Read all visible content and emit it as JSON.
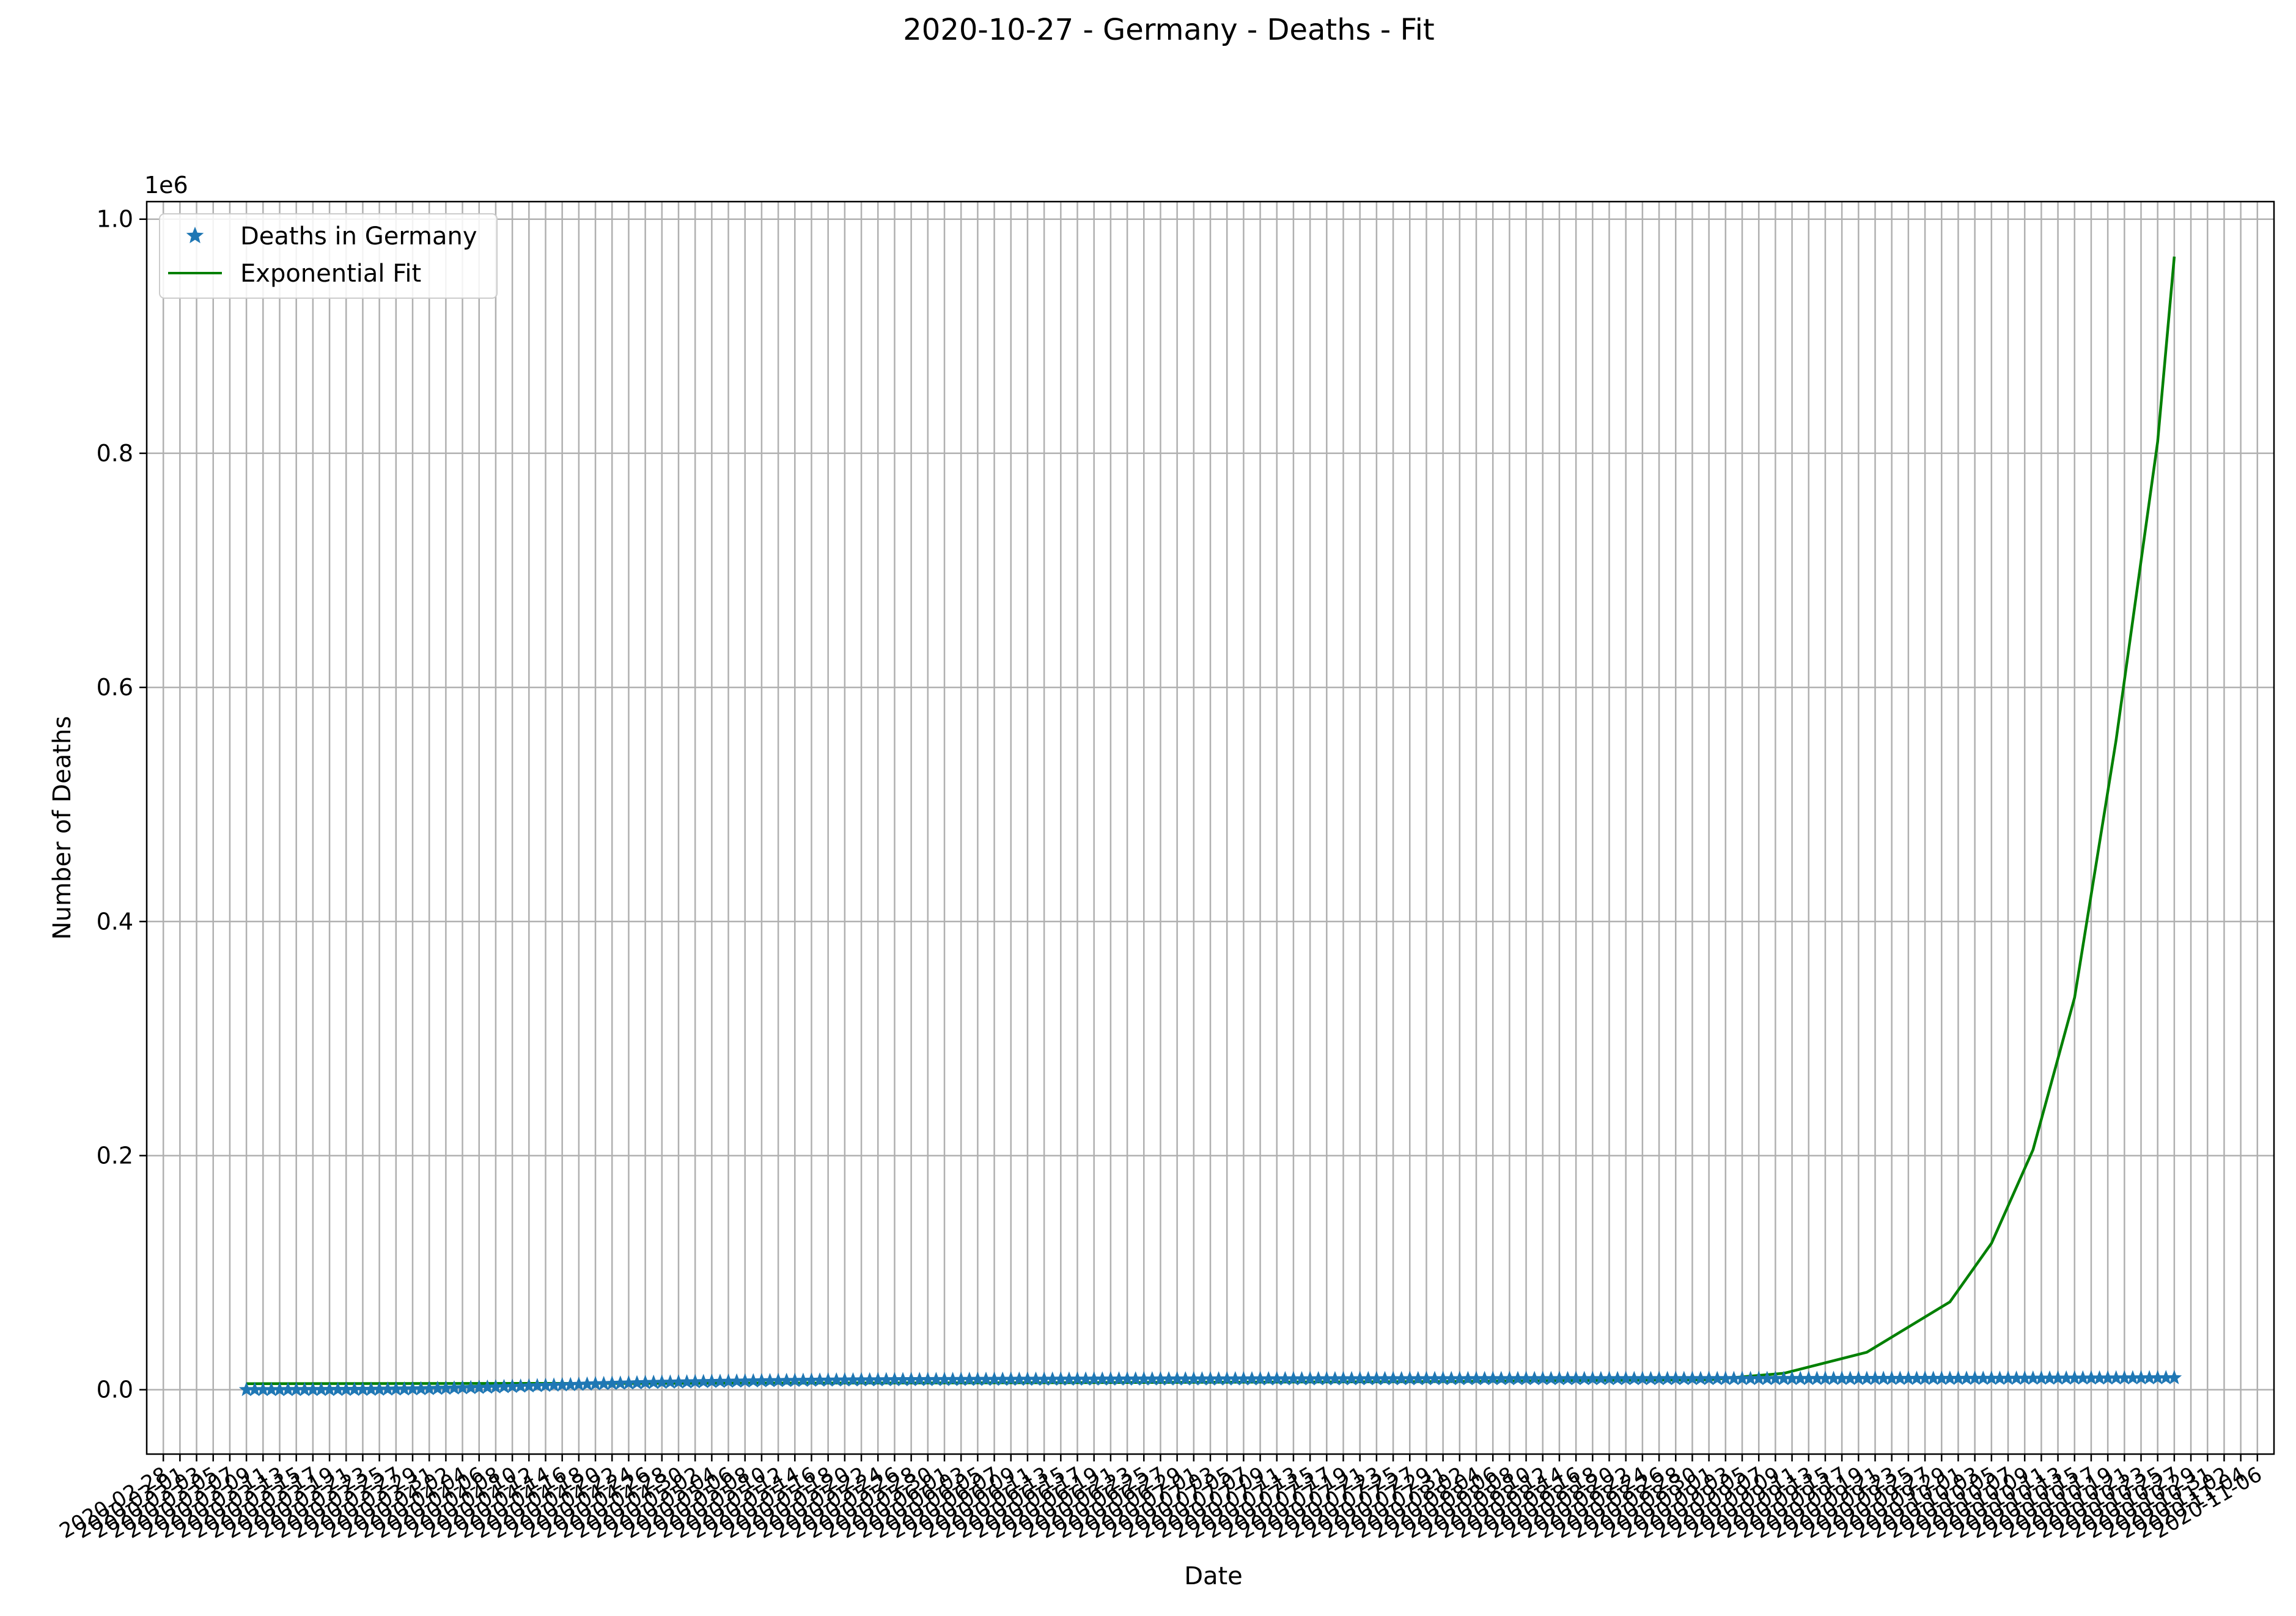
{
  "chart_data": {
    "type": "line",
    "title": "2020-10-27 - Germany - Deaths - Fit",
    "xlabel": "Date",
    "ylabel": "Number of Deaths",
    "y_offset_label": "1e6",
    "y_ticks": [
      "0.0",
      "0.2",
      "0.4",
      "0.6",
      "0.8",
      "1.0"
    ],
    "y_tick_values": [
      0,
      200000,
      400000,
      600000,
      800000,
      1000000
    ],
    "ylim": [
      -55000,
      1015000
    ],
    "xlim": [
      "2020-02-26",
      "2020-11-08"
    ],
    "x_tick_start": "2020-02-28",
    "x_tick_end": "2020-11-06",
    "x_tick_step_days": 2,
    "grid": true,
    "legend_position": "upper-left",
    "colors": {
      "deaths": "#1f77b4",
      "fit": "#008000",
      "grid": "#b0b0b0"
    },
    "series": [
      {
        "name": "Deaths in Germany",
        "marker": "star",
        "x": [
          "2020-03-09",
          "2020-03-16",
          "2020-03-23",
          "2020-03-30",
          "2020-04-06",
          "2020-04-13",
          "2020-04-20",
          "2020-04-27",
          "2020-05-04",
          "2020-05-11",
          "2020-05-18",
          "2020-05-25",
          "2020-06-01",
          "2020-06-15",
          "2020-07-01",
          "2020-07-15",
          "2020-08-01",
          "2020-08-15",
          "2020-09-01",
          "2020-09-15",
          "2020-10-01",
          "2020-10-15",
          "2020-10-27"
        ],
        "y": [
          0,
          20,
          150,
          650,
          1800,
          3300,
          4900,
          6100,
          6900,
          7600,
          8100,
          8400,
          8600,
          8900,
          9100,
          9200,
          9300,
          9350,
          9400,
          9450,
          9550,
          9800,
          10100
        ]
      },
      {
        "name": "Exponential Fit",
        "line": "solid",
        "x": [
          "2020-03-09",
          "2020-05-01",
          "2020-06-15",
          "2020-08-01",
          "2020-09-01",
          "2020-09-10",
          "2020-09-20",
          "2020-09-30",
          "2020-10-05",
          "2020-10-10",
          "2020-10-15",
          "2020-10-20",
          "2020-10-25",
          "2020-10-27"
        ],
        "y": [
          5200,
          5500,
          6000,
          7000,
          8500,
          14000,
          32000,
          75000,
          125000,
          205000,
          335000,
          555000,
          810000,
          968000
        ]
      }
    ]
  }
}
